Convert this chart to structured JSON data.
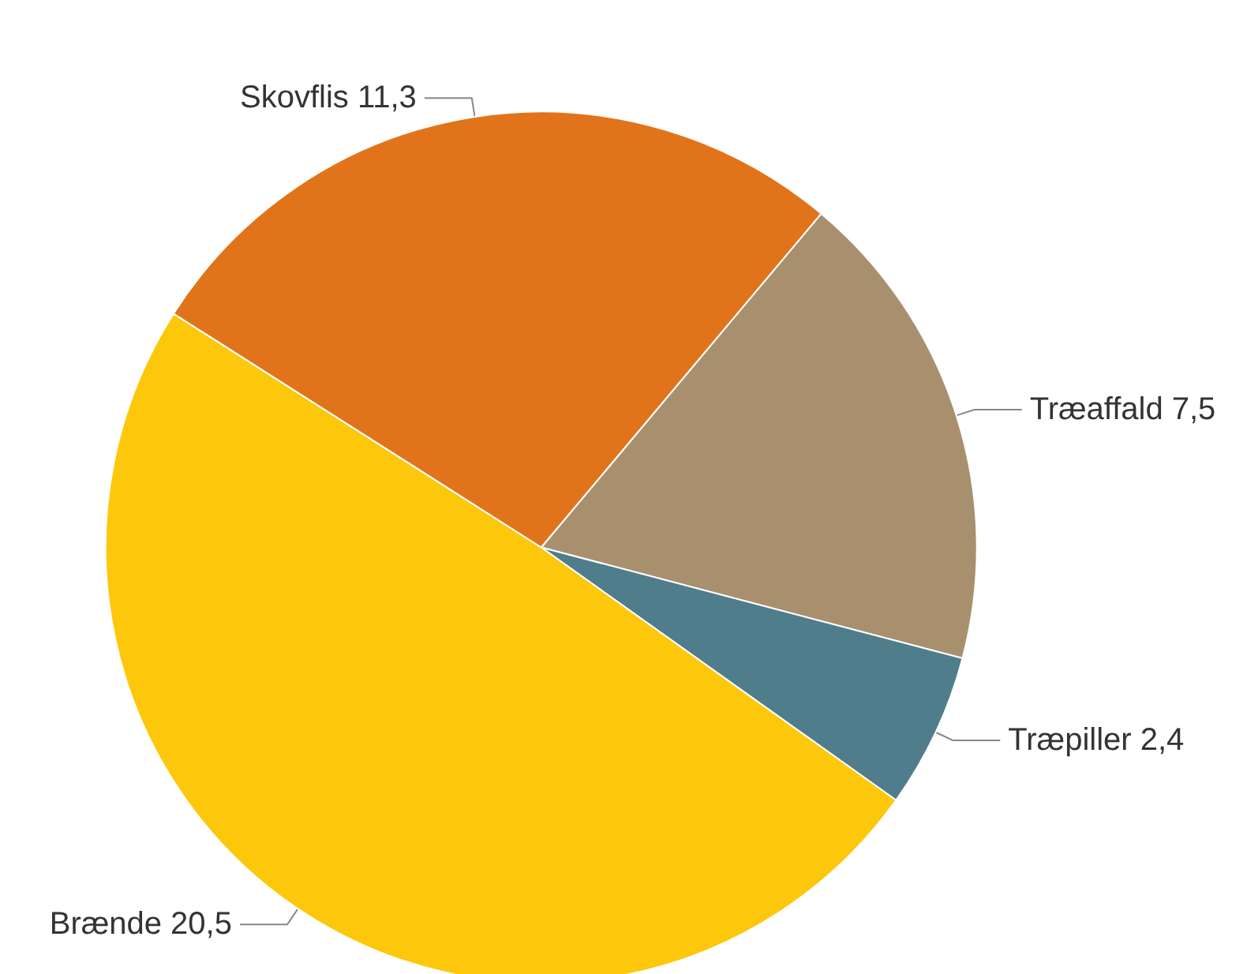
{
  "chart_data": {
    "type": "pie",
    "categories": [
      "Træaffald",
      "Træpiller",
      "Brænde",
      "Skovflis"
    ],
    "values": [
      7.5,
      2.4,
      20.5,
      11.3
    ],
    "value_labels": [
      "7,5",
      "2,4",
      "20,5",
      "11,3"
    ],
    "colors": [
      "#a8906f",
      "#4f7d8c",
      "#fdc70c",
      "#e1741b"
    ],
    "legend": false
  }
}
